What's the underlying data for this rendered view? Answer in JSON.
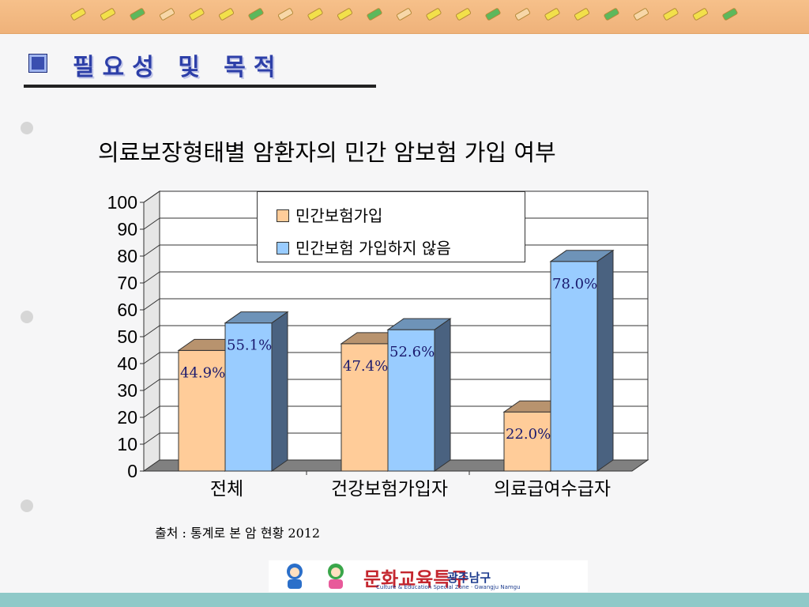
{
  "header": {
    "section_title": "필요성 및 목적"
  },
  "chart_data": {
    "type": "bar",
    "title": "의료보장형태별 암환자의 민간 암보험 가입 여부",
    "categories": [
      "전체",
      "건강보험가입자",
      "의료급여수급자"
    ],
    "series": [
      {
        "name": "민간보험가입",
        "values": [
          44.9,
          47.4,
          22.0
        ],
        "labels": [
          "44.9%",
          "47.4%",
          "22.0%"
        ],
        "color": "#ffcc99"
      },
      {
        "name": "민간보험 가입하지 않음",
        "values": [
          55.1,
          52.6,
          78.0
        ],
        "labels": [
          "55.1%",
          "52.6%",
          "78.0%"
        ],
        "color": "#99ccff"
      }
    ],
    "yticks": [
      0,
      10,
      20,
      30,
      40,
      50,
      60,
      70,
      80,
      90,
      100
    ],
    "ylim": [
      0,
      100
    ],
    "grid": true,
    "legend_position": "top-center"
  },
  "source_text": "출처 : 통계로 본 암 현황 2012",
  "logo": {
    "main_text": "문화교육특구",
    "sub_text": "광주남구",
    "english_text": "Culture & Education Special Zone · Gwangju Namgu"
  }
}
